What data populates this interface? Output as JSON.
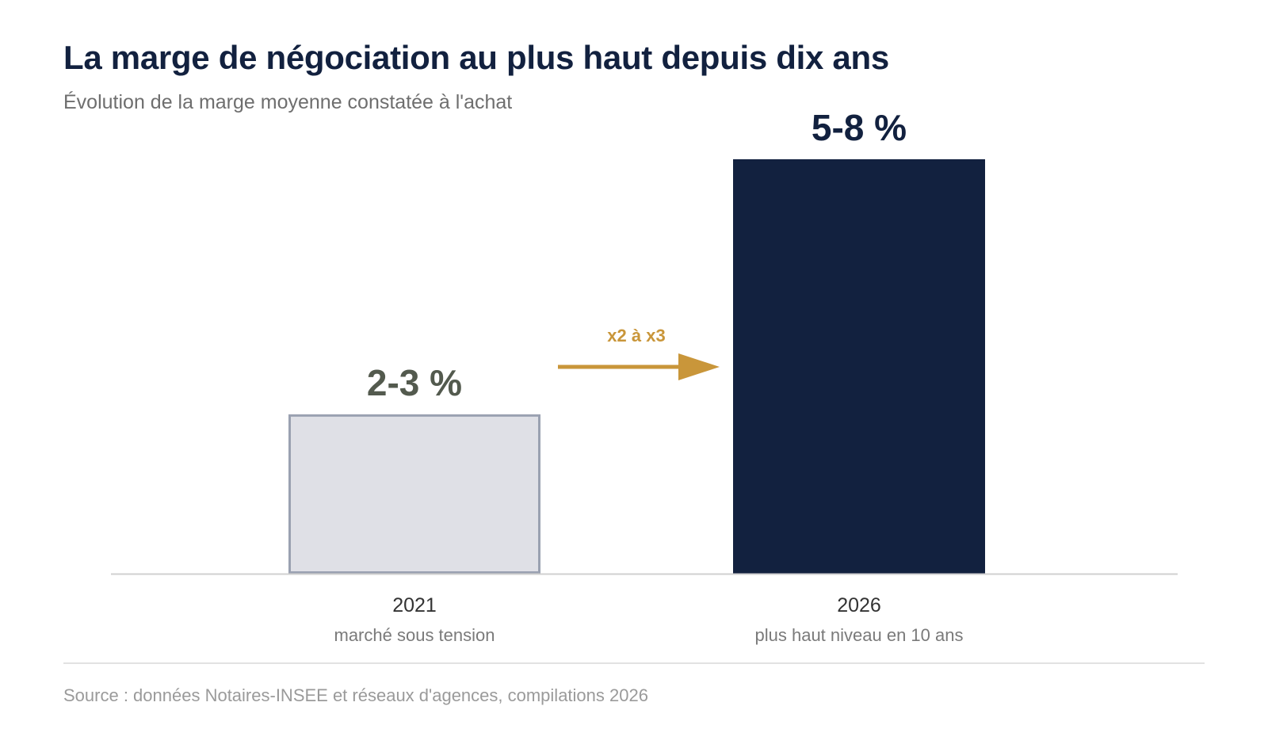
{
  "chart_data": {
    "type": "bar",
    "title": "La marge de négociation au plus haut depuis dix ans",
    "subtitle": "Évolution de la marge moyenne constatée à l'achat",
    "categories": [
      "2021",
      "2026"
    ],
    "category_sublabels": [
      "marché sous tension",
      "plus haut niveau en 10 ans"
    ],
    "value_labels": [
      "2-3 %",
      "5-8 %"
    ],
    "values": [
      2.5,
      6.5
    ],
    "ylim": [
      0,
      6.5
    ],
    "xlabel": "",
    "ylabel": "",
    "grid": false,
    "legend": "none",
    "annotation": {
      "text": "x2 à x3",
      "type": "arrow",
      "direction": "right"
    },
    "colors": {
      "bar_2021_fill": "#dfe0e6",
      "bar_2021_border": "#9aa1b1",
      "bar_2026_fill": "#12213f",
      "value_2021": "#535a4e",
      "value_2026": "#12213f",
      "accent": "#c9963a",
      "baseline": "#d0d0d0"
    }
  },
  "source": "Source : données Notaires-INSEE et réseaux d'agences, compilations 2026"
}
